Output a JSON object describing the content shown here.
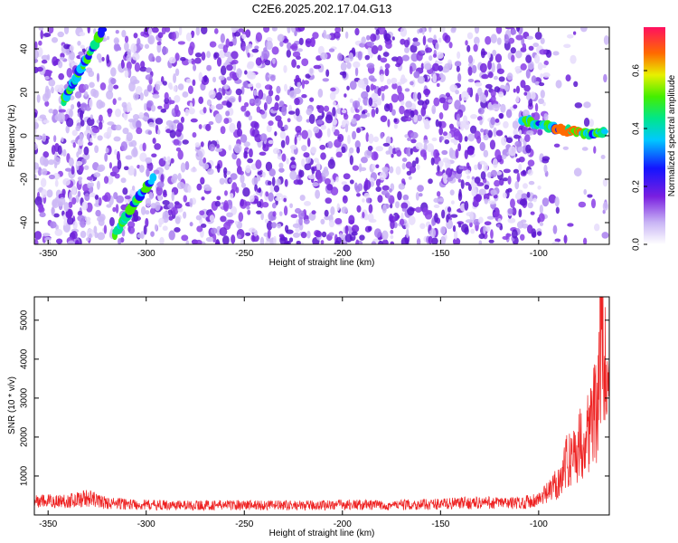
{
  "title": "C2E6.2025.202.17.04.G13",
  "chart_data": [
    {
      "type": "heatmap",
      "xlabel": "Height of straight line (km)",
      "ylabel": "Frequency (Hz)",
      "xlim": [
        -357,
        -64
      ],
      "ylim": [
        -50,
        50
      ],
      "xticks": [
        -350,
        -300,
        -250,
        -200,
        -150,
        -100
      ],
      "yticks": [
        -40,
        -20,
        0,
        20,
        40
      ],
      "colorbar": {
        "label": "Normalized spectral amplitude",
        "range": [
          0.0,
          0.75
        ],
        "ticks": [
          0.0,
          0.2,
          0.4,
          0.6
        ]
      },
      "ridges": [
        {
          "points": [
            [
              -342,
              16
            ],
            [
              -336,
              26
            ],
            [
              -330,
              36
            ],
            [
              -322,
              49
            ]
          ]
        },
        {
          "points": [
            [
              -316,
              -46
            ],
            [
              -308,
              -34
            ],
            [
              -296,
              -19
            ]
          ]
        },
        {
          "points": [
            [
              -108,
              7
            ],
            [
              -98,
              5
            ],
            [
              -90,
              3
            ],
            [
              -82,
              2
            ],
            [
              -74,
              1
            ],
            [
              -66,
              2
            ]
          ]
        }
      ]
    },
    {
      "type": "line",
      "xlabel": "Height of straight line (km)",
      "ylabel": "SNR (10 * v/v)",
      "xlim": [
        -357,
        -64
      ],
      "ylim": [
        0,
        5600
      ],
      "xticks": [
        -350,
        -300,
        -250,
        -200,
        -150,
        -100
      ],
      "yticks": [
        1000,
        2000,
        3000,
        4000,
        5000
      ],
      "series": [
        {
          "color": "#ee2222",
          "values": [
            [
              -357,
              360
            ],
            [
              -340,
              380
            ],
            [
              -330,
              460
            ],
            [
              -320,
              320
            ],
            [
              -300,
              270
            ],
            [
              -280,
              260
            ],
            [
              -250,
              270
            ],
            [
              -220,
              250
            ],
            [
              -200,
              280
            ],
            [
              -180,
              260
            ],
            [
              -160,
              280
            ],
            [
              -150,
              300
            ],
            [
              -130,
              330
            ],
            [
              -110,
              320
            ],
            [
              -100,
              420
            ],
            [
              -95,
              600
            ],
            [
              -90,
              900
            ],
            [
              -85,
              1500
            ],
            [
              -80,
              1800
            ],
            [
              -75,
              2300
            ],
            [
              -70,
              2900
            ],
            [
              -68,
              5400
            ],
            [
              -66,
              3800
            ],
            [
              -64,
              3000
            ]
          ]
        }
      ]
    }
  ]
}
